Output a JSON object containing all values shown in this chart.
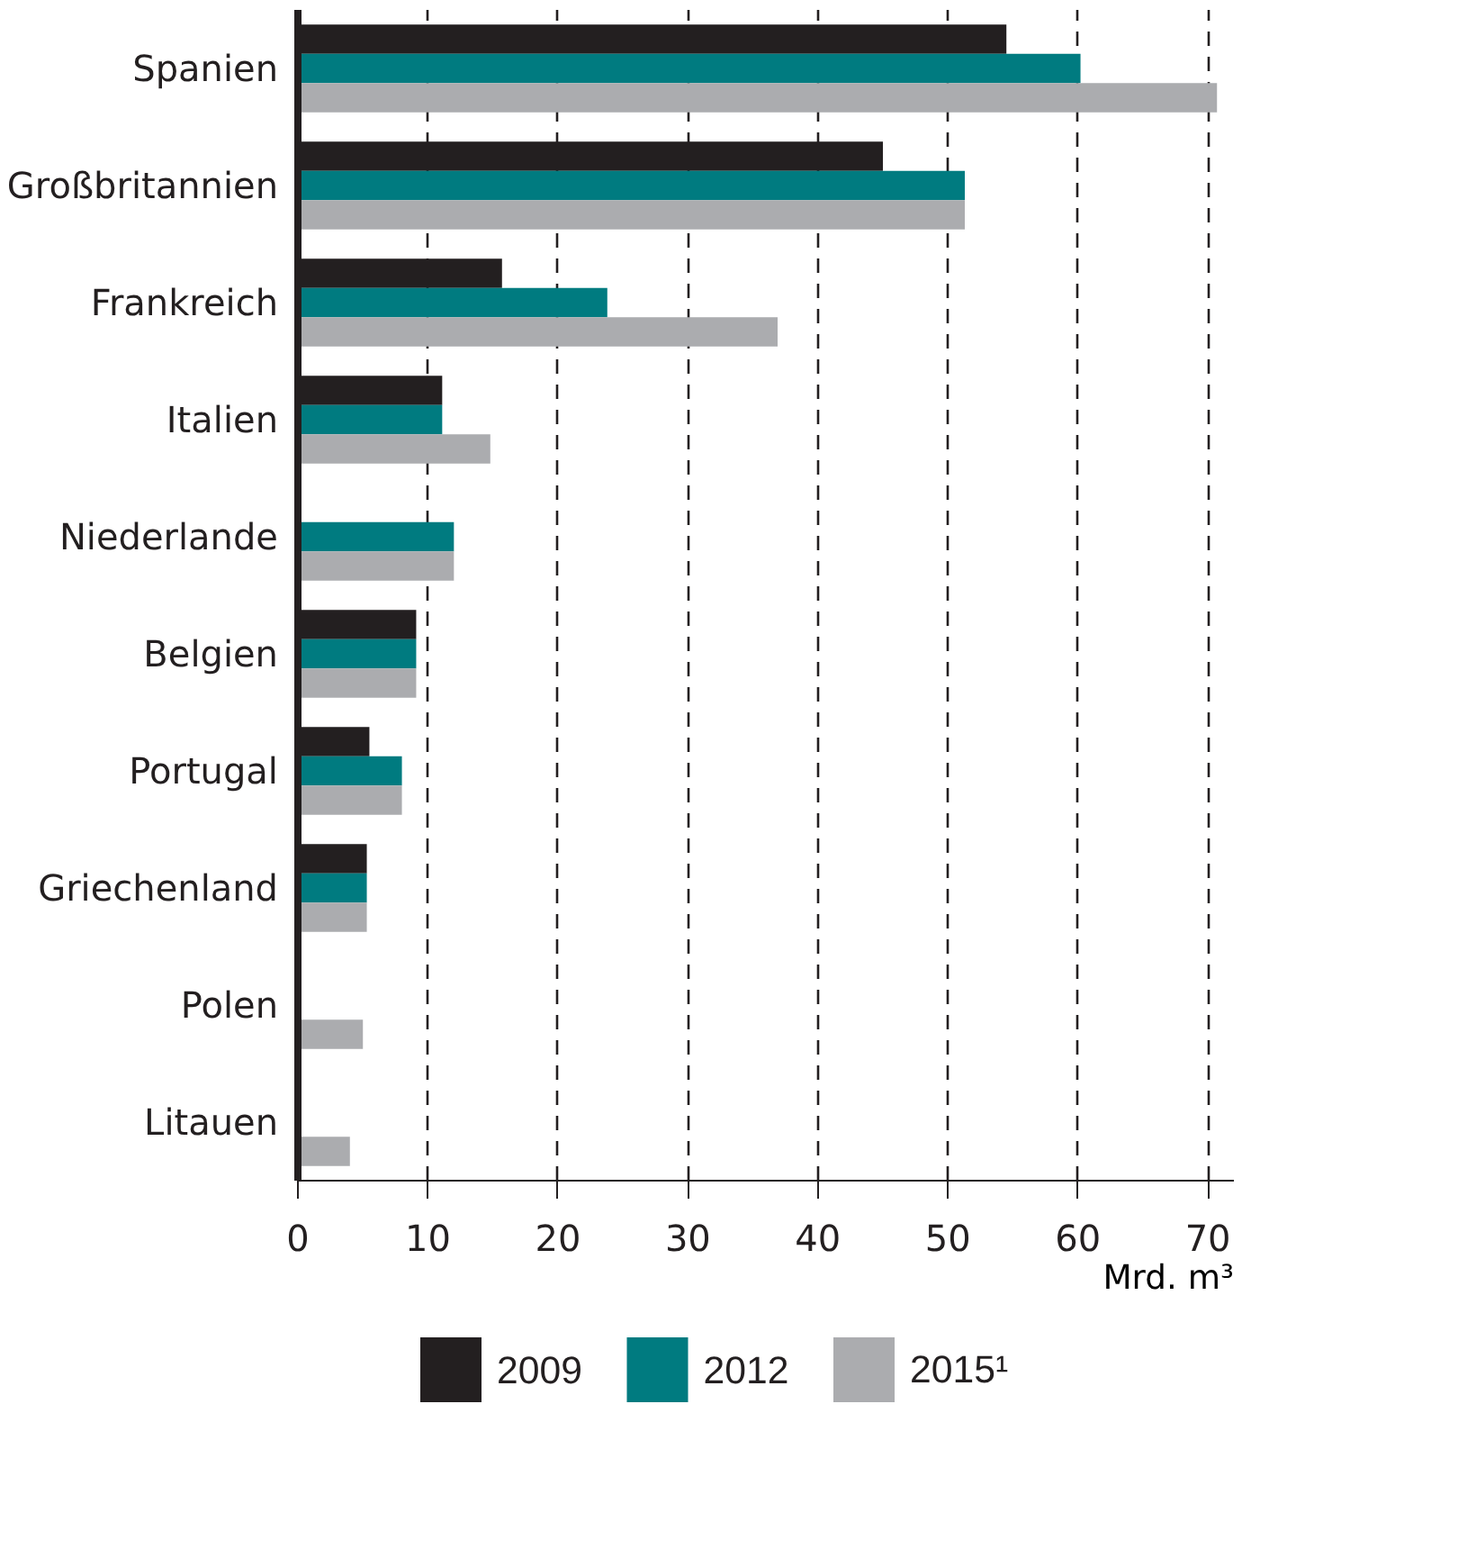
{
  "chart_data": {
    "type": "bar",
    "orientation": "horizontal",
    "xlabel": "Mrd. m³",
    "categories": [
      "Spanien",
      "Großbritannien",
      "Frankreich",
      "Italien",
      "Niederlande",
      "Belgien",
      "Portugal",
      "Griechenland",
      "Polen",
      "Litauen"
    ],
    "series": [
      {
        "name": "2009",
        "color": "#231f20",
        "values": [
          54.5,
          45.0,
          15.7,
          11.1,
          null,
          9.1,
          5.5,
          5.3,
          null,
          null
        ]
      },
      {
        "name": "2012",
        "color": "#007b80",
        "values": [
          60.2,
          51.3,
          23.8,
          11.1,
          12.0,
          9.1,
          8.0,
          5.3,
          null,
          null
        ]
      },
      {
        "name": "2015¹",
        "color": "#abacaf",
        "values": [
          70.7,
          51.3,
          36.9,
          14.8,
          12.0,
          9.1,
          8.0,
          5.3,
          5.0,
          4.0
        ]
      }
    ],
    "xlim": [
      0,
      72
    ],
    "xticks": [
      0,
      10,
      20,
      30,
      40,
      50,
      60,
      70
    ],
    "grid": "x",
    "legend": "bottom"
  }
}
